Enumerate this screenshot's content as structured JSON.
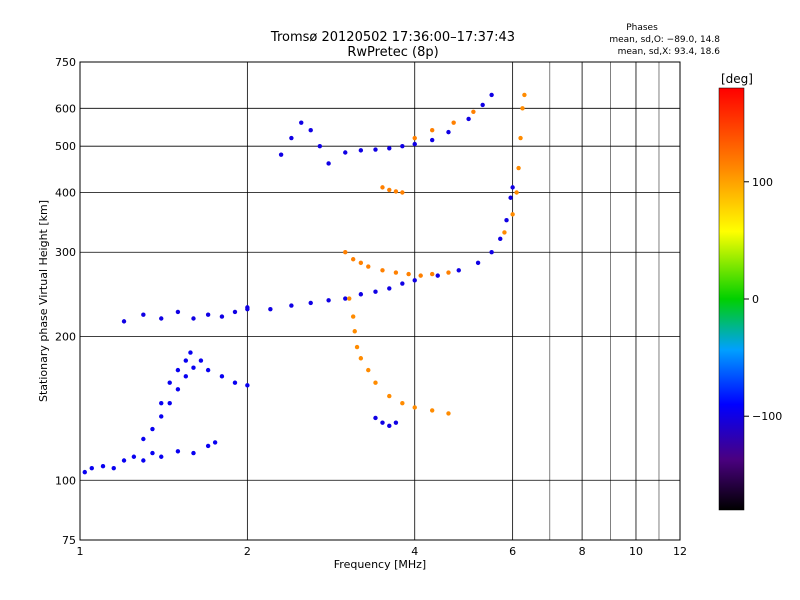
{
  "chart_data": {
    "type": "scatter",
    "title": "Tromsø 20120502 17:36:00–17:37:43",
    "subtitle": "RwPretec (8p)",
    "xlabel": "Frequency [MHz]",
    "ylabel": "Stationary phase Virtual Height [km]",
    "x_scale": "log",
    "y_scale": "log",
    "xlim": [
      1,
      12
    ],
    "ylim": [
      75,
      750
    ],
    "x_ticks": [
      1,
      2,
      4,
      6,
      8,
      10,
      12
    ],
    "y_ticks": [
      75,
      100,
      200,
      300,
      400,
      500,
      600,
      750
    ],
    "x_gridlines": [
      1,
      2,
      4,
      6,
      8,
      10,
      12
    ],
    "y_gridlines": [
      100,
      200,
      300,
      400,
      500,
      600
    ],
    "grid": true,
    "phase_info": {
      "heading": "Phases",
      "line_o": "mean, sd,O: −89.0, 14.8",
      "line_x": "mean, sd,X:  93.4, 18.6"
    },
    "colorbar": {
      "label": "[deg]",
      "range": [
        -180,
        180
      ],
      "ticks": [
        {
          "value": 100,
          "label": "100"
        },
        {
          "value": 0,
          "label": "0"
        },
        {
          "value": -100,
          "label": "−100"
        }
      ]
    },
    "series": [
      {
        "phase": -95,
        "points": [
          [
            1.02,
            104
          ],
          [
            1.05,
            106
          ],
          [
            1.1,
            107
          ],
          [
            1.15,
            106
          ],
          [
            1.2,
            110
          ],
          [
            1.25,
            112
          ],
          [
            1.3,
            110
          ],
          [
            1.35,
            114
          ],
          [
            1.4,
            112
          ],
          [
            1.5,
            115
          ],
          [
            1.6,
            114
          ],
          [
            1.7,
            118
          ],
          [
            1.75,
            120
          ]
        ]
      },
      {
        "phase": -95,
        "points": [
          [
            1.3,
            122
          ],
          [
            1.35,
            128
          ],
          [
            1.4,
            136
          ],
          [
            1.45,
            145
          ],
          [
            1.5,
            155
          ],
          [
            1.55,
            165
          ],
          [
            1.6,
            172
          ],
          [
            1.65,
            178
          ]
        ]
      },
      {
        "phase": -95,
        "points": [
          [
            1.4,
            145
          ],
          [
            1.45,
            160
          ],
          [
            1.5,
            170
          ],
          [
            1.55,
            178
          ],
          [
            1.58,
            185
          ]
        ]
      },
      {
        "phase": -95,
        "points": [
          [
            1.7,
            170
          ],
          [
            1.8,
            165
          ],
          [
            1.9,
            160
          ],
          [
            2.0,
            158
          ]
        ]
      },
      {
        "phase": -100,
        "points": [
          [
            1.2,
            215
          ],
          [
            1.3,
            222
          ],
          [
            1.4,
            218
          ],
          [
            1.5,
            225
          ],
          [
            1.6,
            218
          ],
          [
            1.7,
            222
          ],
          [
            1.8,
            220
          ],
          [
            1.9,
            225
          ],
          [
            2.0,
            228
          ]
        ]
      },
      {
        "phase": -100,
        "points": [
          [
            2.0,
            230
          ],
          [
            2.2,
            228
          ],
          [
            2.4,
            232
          ],
          [
            2.6,
            235
          ],
          [
            2.8,
            238
          ],
          [
            3.0,
            240
          ],
          [
            3.2,
            245
          ],
          [
            3.4,
            248
          ],
          [
            3.6,
            252
          ],
          [
            3.8,
            258
          ],
          [
            4.0,
            262
          ],
          [
            4.4,
            268
          ],
          [
            4.8,
            275
          ],
          [
            5.2,
            285
          ],
          [
            5.5,
            300
          ],
          [
            5.7,
            320
          ],
          [
            5.85,
            350
          ],
          [
            5.95,
            390
          ],
          [
            6.0,
            410
          ]
        ]
      },
      {
        "phase": -100,
        "points": [
          [
            2.3,
            480
          ],
          [
            2.4,
            520
          ],
          [
            2.5,
            560
          ],
          [
            2.6,
            540
          ],
          [
            2.7,
            500
          ],
          [
            2.8,
            460
          ]
        ]
      },
      {
        "phase": -100,
        "points": [
          [
            3.0,
            485
          ],
          [
            3.2,
            490
          ],
          [
            3.4,
            492
          ],
          [
            3.6,
            495
          ],
          [
            3.8,
            500
          ],
          [
            4.0,
            505
          ],
          [
            4.3,
            515
          ],
          [
            4.6,
            535
          ],
          [
            5.0,
            570
          ],
          [
            5.3,
            610
          ],
          [
            5.5,
            640
          ]
        ]
      },
      {
        "phase": -100,
        "points": [
          [
            3.4,
            135
          ],
          [
            3.5,
            132
          ],
          [
            3.6,
            130
          ],
          [
            3.7,
            132
          ]
        ]
      },
      {
        "phase": 115,
        "points": [
          [
            3.0,
            300
          ],
          [
            3.1,
            290
          ],
          [
            3.2,
            285
          ],
          [
            3.3,
            280
          ],
          [
            3.5,
            275
          ],
          [
            3.7,
            272
          ],
          [
            3.9,
            270
          ],
          [
            4.1,
            268
          ],
          [
            4.3,
            270
          ],
          [
            4.6,
            272
          ]
        ]
      },
      {
        "phase": 115,
        "points": [
          [
            3.5,
            410
          ],
          [
            3.6,
            405
          ],
          [
            3.7,
            402
          ],
          [
            3.8,
            400
          ]
        ]
      },
      {
        "phase": 110,
        "points": [
          [
            3.05,
            240
          ],
          [
            3.1,
            220
          ],
          [
            3.12,
            205
          ],
          [
            3.15,
            190
          ],
          [
            3.2,
            180
          ],
          [
            3.3,
            170
          ],
          [
            3.4,
            160
          ],
          [
            3.6,
            150
          ],
          [
            3.8,
            145
          ],
          [
            4.0,
            142
          ],
          [
            4.3,
            140
          ],
          [
            4.6,
            138
          ]
        ]
      },
      {
        "phase": 110,
        "points": [
          [
            5.8,
            330
          ],
          [
            6.0,
            360
          ],
          [
            6.1,
            400
          ],
          [
            6.15,
            450
          ],
          [
            6.2,
            520
          ],
          [
            6.25,
            600
          ],
          [
            6.3,
            640
          ]
        ]
      },
      {
        "phase": 115,
        "points": [
          [
            4.0,
            520
          ],
          [
            4.3,
            540
          ],
          [
            4.7,
            560
          ],
          [
            5.1,
            590
          ]
        ]
      }
    ]
  }
}
